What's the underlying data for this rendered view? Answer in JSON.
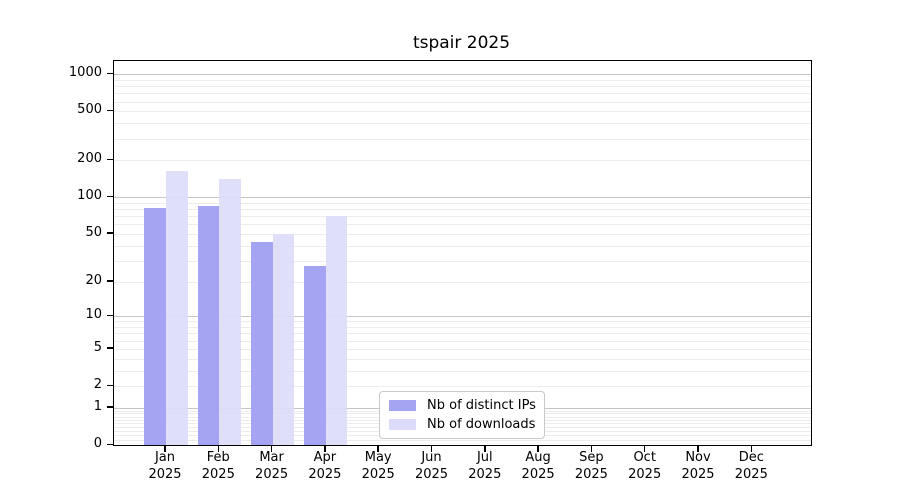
{
  "title": "tspair 2025",
  "colors": {
    "ips_bar": "#a4a4f2",
    "downloads_bar": "#dcdcfa",
    "grid_major": "#c6c6c6",
    "grid_minor": "#ececec",
    "axis": "#000000",
    "background": "#ffffff"
  },
  "y_axis": {
    "tick_values": [
      0,
      1,
      2,
      5,
      10,
      20,
      50,
      100,
      200,
      500,
      1000
    ]
  },
  "x_axis": {
    "months": [
      "Jan",
      "Feb",
      "Mar",
      "Apr",
      "May",
      "Jun",
      "Jul",
      "Aug",
      "Sep",
      "Oct",
      "Nov",
      "Dec"
    ],
    "year": "2025"
  },
  "legend": {
    "items": [
      {
        "label": "Nb of distinct IPs",
        "color_key": "ips_bar"
      },
      {
        "label": "Nb of downloads",
        "color_key": "downloads_bar"
      }
    ]
  },
  "chart_data": {
    "type": "bar",
    "title": "tspair 2025",
    "categories": [
      "Jan 2025",
      "Feb 2025",
      "Mar 2025",
      "Apr 2025",
      "May 2025",
      "Jun 2025",
      "Jul 2025",
      "Aug 2025",
      "Sep 2025",
      "Oct 2025",
      "Nov 2025",
      "Dec 2025"
    ],
    "series": [
      {
        "name": "Nb of distinct IPs",
        "values": [
          81,
          85,
          43,
          27,
          null,
          null,
          null,
          null,
          null,
          null,
          null,
          null
        ]
      },
      {
        "name": "Nb of downloads",
        "values": [
          165,
          140,
          50,
          70,
          null,
          null,
          null,
          null,
          null,
          null,
          null,
          null
        ]
      }
    ],
    "yscale": "log1p",
    "yticks": [
      0,
      1,
      2,
      5,
      10,
      20,
      50,
      100,
      200,
      500,
      1000
    ],
    "ylim": [
      0,
      1280
    ],
    "xlabel": "",
    "ylabel": "",
    "grid": true,
    "legend_position": "inside-bottom-center-left"
  }
}
